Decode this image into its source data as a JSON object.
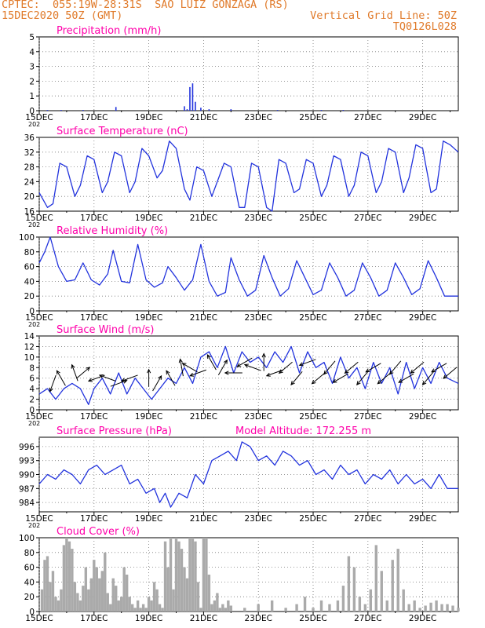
{
  "header": {
    "line1_left": "CPTEC:  055:19W-28:31S  SAO LUIZ GONZAGA (RS)",
    "line2_left": "15DEC2020 50Z (GMT)",
    "line2_right": "Vertical Grid Line: 50Z",
    "line3_right": "TQ0126L028"
  },
  "colors": {
    "header": "#e07a2a",
    "title": "#ff00aa",
    "line": "#2233dd",
    "cloud": "#aaaaaa",
    "wind": "#000000"
  },
  "x_axis": {
    "tick_labels": [
      "15DEC",
      "17DEC",
      "19DEC",
      "21DEC",
      "23DEC",
      "25DEC",
      "27DEC",
      "29DEC"
    ],
    "tick_days": [
      0,
      2,
      4,
      6,
      8,
      10,
      12,
      14
    ],
    "range_days": [
      0,
      15.3
    ],
    "year_stub": "202"
  },
  "chart_data": [
    {
      "type": "bar",
      "title": "Precipitation (mm/h)",
      "ylim": [
        0,
        5
      ],
      "yticks": [
        "0",
        "1",
        "2",
        "3",
        "4",
        "5"
      ],
      "x": [
        0.3,
        0.8,
        1.6,
        2.8,
        5.3,
        5.4,
        5.5,
        5.6,
        5.7,
        5.9,
        6.2,
        7.0,
        8.7,
        10.3,
        11.1
      ],
      "values": [
        0.05,
        0.05,
        0.05,
        0.25,
        0.3,
        0.1,
        1.6,
        1.85,
        0.6,
        0.2,
        0.1,
        0.1,
        0.05,
        0.05,
        0.05
      ]
    },
    {
      "type": "line",
      "title": "Surface Temperature (nC)",
      "ylim": [
        16,
        36
      ],
      "yticks": [
        "16",
        "20",
        "24",
        "28",
        "32",
        "36"
      ],
      "x": [
        0,
        0.3,
        0.5,
        0.75,
        1.0,
        1.3,
        1.5,
        1.75,
        2.0,
        2.3,
        2.5,
        2.75,
        3.0,
        3.3,
        3.5,
        3.75,
        4.0,
        4.3,
        4.5,
        4.75,
        5.0,
        5.3,
        5.5,
        5.75,
        6.0,
        6.3,
        6.5,
        6.75,
        7.0,
        7.3,
        7.5,
        7.75,
        8.0,
        8.3,
        8.5,
        8.75,
        9.0,
        9.3,
        9.5,
        9.75,
        10.0,
        10.3,
        10.5,
        10.75,
        11.0,
        11.3,
        11.5,
        11.75,
        12.0,
        12.3,
        12.5,
        12.75,
        13.0,
        13.3,
        13.5,
        13.75,
        14.0,
        14.3,
        14.5,
        14.75,
        15.0,
        15.3
      ],
      "values": [
        21,
        17,
        18,
        29,
        28,
        20,
        23,
        31,
        30,
        21,
        24,
        32,
        31,
        21,
        24,
        33,
        31,
        25,
        27,
        35,
        33,
        22,
        19,
        28,
        27,
        20,
        24,
        29,
        28,
        17,
        17,
        29,
        28,
        17,
        16,
        30,
        29,
        21,
        22,
        30,
        29,
        20,
        23,
        31,
        30,
        20,
        23,
        32,
        31,
        21,
        24,
        33,
        32,
        21,
        25,
        34,
        33,
        21,
        22,
        35,
        34,
        32
      ]
    },
    {
      "type": "line",
      "title": "Relative Humidity (%)",
      "ylim": [
        0,
        100
      ],
      "yticks": [
        "0",
        "20",
        "40",
        "60",
        "80",
        "100"
      ],
      "x": [
        0,
        0.2,
        0.4,
        0.7,
        1.0,
        1.3,
        1.6,
        1.9,
        2.2,
        2.5,
        2.7,
        3.0,
        3.3,
        3.6,
        3.9,
        4.2,
        4.5,
        4.7,
        5.0,
        5.3,
        5.6,
        5.9,
        6.2,
        6.5,
        6.8,
        7.0,
        7.3,
        7.6,
        7.9,
        8.2,
        8.5,
        8.8,
        9.1,
        9.4,
        9.7,
        10.0,
        10.3,
        10.6,
        10.9,
        11.2,
        11.5,
        11.8,
        12.1,
        12.4,
        12.7,
        13.0,
        13.3,
        13.6,
        13.9,
        14.2,
        14.5,
        14.8,
        15.0,
        15.3
      ],
      "values": [
        65,
        80,
        100,
        60,
        40,
        42,
        65,
        42,
        35,
        50,
        82,
        40,
        38,
        90,
        42,
        32,
        38,
        60,
        45,
        28,
        42,
        90,
        40,
        20,
        25,
        72,
        42,
        20,
        28,
        75,
        45,
        20,
        30,
        68,
        45,
        22,
        28,
        65,
        45,
        20,
        28,
        65,
        45,
        20,
        28,
        65,
        45,
        22,
        30,
        68,
        45,
        20,
        20,
        20
      ]
    },
    {
      "type": "line",
      "title": "Surface Wind (m/s)",
      "ylim": [
        0,
        14
      ],
      "yticks": [
        "0",
        "2",
        "4",
        "6",
        "8",
        "10",
        "12",
        "14"
      ],
      "x": [
        0,
        0.3,
        0.6,
        0.9,
        1.2,
        1.5,
        1.8,
        2.0,
        2.3,
        2.6,
        2.9,
        3.2,
        3.5,
        3.8,
        4.1,
        4.4,
        4.7,
        5.0,
        5.3,
        5.6,
        5.9,
        6.2,
        6.5,
        6.8,
        7.1,
        7.4,
        7.7,
        8.0,
        8.3,
        8.6,
        8.9,
        9.2,
        9.5,
        9.8,
        10.1,
        10.4,
        10.7,
        11.0,
        11.3,
        11.6,
        11.9,
        12.2,
        12.5,
        12.8,
        13.1,
        13.4,
        13.7,
        14.0,
        14.3,
        14.6,
        14.9,
        15.3
      ],
      "values": [
        3,
        4,
        2,
        4,
        5,
        4,
        1,
        4,
        6,
        3,
        7,
        3,
        6,
        4,
        2,
        4,
        6,
        5,
        8,
        5,
        10,
        11,
        8,
        12,
        7,
        11,
        9,
        10,
        8,
        11,
        9,
        12,
        7,
        11,
        8,
        9,
        5,
        10,
        6,
        8,
        4,
        9,
        5,
        8,
        3,
        9,
        4,
        8,
        5,
        9,
        6,
        5
      ],
      "arrows": {
        "x": [
          0.5,
          0.8,
          1.3,
          1.6,
          2.1,
          2.5,
          2.9,
          3.3,
          4.0,
          4.3,
          4.8,
          5.2,
          5.5,
          5.8,
          6.3,
          6.7,
          7.1,
          7.5,
          7.8,
          8.2,
          8.6,
          9.0,
          9.4,
          9.8,
          10.2,
          10.6,
          11.0,
          11.4,
          11.8,
          12.2,
          12.6,
          13.0,
          13.4,
          13.8,
          14.2,
          14.6,
          15.0
        ],
        "y": [
          5,
          6,
          7,
          7,
          6,
          6,
          5,
          6,
          6,
          5,
          6,
          8,
          8,
          7,
          9,
          8,
          7,
          9,
          8,
          9,
          7,
          8,
          6,
          9,
          6,
          8,
          6,
          8,
          6,
          8,
          6,
          8,
          6,
          8,
          6,
          8,
          7
        ],
        "angle_deg": [
          250,
          120,
          110,
          40,
          200,
          160,
          20,
          200,
          90,
          60,
          120,
          100,
          150,
          200,
          120,
          60,
          180,
          210,
          160,
          90,
          200,
          220,
          230,
          200,
          220,
          230,
          210,
          220,
          230,
          210,
          220,
          230,
          210,
          220,
          230,
          210,
          220
        ]
      }
    },
    {
      "type": "line",
      "title": "Surface Pressure (hPa)",
      "annotation": "Model Altitude: 172.255 m",
      "ylim": [
        982,
        998
      ],
      "yticks": [
        "984",
        "987",
        "990",
        "993",
        "996"
      ],
      "x": [
        0,
        0.3,
        0.6,
        0.9,
        1.2,
        1.5,
        1.8,
        2.1,
        2.4,
        2.7,
        3.0,
        3.3,
        3.6,
        3.9,
        4.2,
        4.4,
        4.6,
        4.8,
        5.1,
        5.4,
        5.7,
        6.0,
        6.3,
        6.6,
        6.9,
        7.2,
        7.4,
        7.7,
        8.0,
        8.3,
        8.6,
        8.9,
        9.2,
        9.5,
        9.8,
        10.1,
        10.4,
        10.7,
        11.0,
        11.3,
        11.6,
        11.9,
        12.2,
        12.5,
        12.8,
        13.1,
        13.4,
        13.7,
        14.0,
        14.3,
        14.6,
        14.9,
        15.3
      ],
      "values": [
        988,
        990,
        989,
        991,
        990,
        988,
        991,
        992,
        990,
        991,
        992,
        988,
        989,
        986,
        987,
        984,
        986,
        983,
        986,
        985,
        990,
        988,
        993,
        994,
        995,
        993,
        997,
        996,
        993,
        994,
        992,
        995,
        994,
        992,
        993,
        990,
        991,
        989,
        992,
        990,
        991,
        988,
        990,
        989,
        991,
        988,
        990,
        988,
        989,
        987,
        990,
        987,
        987
      ]
    },
    {
      "type": "area",
      "title": "Cloud Cover (%)",
      "ylim": [
        0,
        100
      ],
      "yticks": [
        "0",
        "20",
        "40",
        "60",
        "80",
        "100"
      ],
      "x": [
        0.1,
        0.2,
        0.3,
        0.4,
        0.5,
        0.6,
        0.7,
        0.8,
        0.9,
        1.0,
        1.1,
        1.2,
        1.3,
        1.4,
        1.5,
        1.6,
        1.7,
        1.8,
        1.9,
        2.0,
        2.1,
        2.2,
        2.3,
        2.4,
        2.5,
        2.6,
        2.7,
        2.8,
        2.9,
        3.0,
        3.1,
        3.2,
        3.3,
        3.4,
        3.5,
        3.6,
        3.7,
        3.8,
        3.9,
        4.0,
        4.1,
        4.2,
        4.3,
        4.4,
        4.5,
        4.6,
        4.7,
        4.8,
        4.9,
        5.0,
        5.1,
        5.2,
        5.3,
        5.4,
        5.5,
        5.6,
        5.7,
        5.8,
        5.9,
        6.0,
        6.1,
        6.2,
        6.3,
        6.4,
        6.5,
        6.6,
        6.7,
        6.8,
        6.9,
        7.0,
        7.5,
        8.0,
        8.5,
        9.0,
        9.4,
        9.7,
        10.0,
        10.3,
        10.6,
        10.9,
        11.1,
        11.3,
        11.5,
        11.7,
        11.9,
        12.1,
        12.3,
        12.5,
        12.7,
        12.9,
        13.1,
        13.3,
        13.5,
        13.7,
        13.9,
        14.1,
        14.3,
        14.5,
        14.7,
        14.9,
        15.1,
        15.3
      ],
      "values": [
        30,
        70,
        75,
        40,
        55,
        20,
        15,
        30,
        90,
        100,
        95,
        85,
        40,
        25,
        15,
        35,
        60,
        30,
        45,
        70,
        60,
        45,
        55,
        80,
        25,
        10,
        45,
        35,
        15,
        20,
        60,
        50,
        20,
        10,
        5,
        15,
        5,
        10,
        5,
        20,
        15,
        40,
        30,
        10,
        5,
        95,
        60,
        100,
        30,
        100,
        95,
        85,
        60,
        45,
        100,
        100,
        95,
        40,
        5,
        100,
        100,
        50,
        10,
        15,
        25,
        5,
        10,
        5,
        15,
        8,
        5,
        10,
        15,
        5,
        10,
        20,
        5,
        15,
        10,
        15,
        35,
        75,
        60,
        20,
        10,
        30,
        90,
        55,
        15,
        70,
        85,
        30,
        10,
        15,
        5,
        8,
        12,
        15,
        10,
        10,
        8,
        5
      ]
    }
  ]
}
